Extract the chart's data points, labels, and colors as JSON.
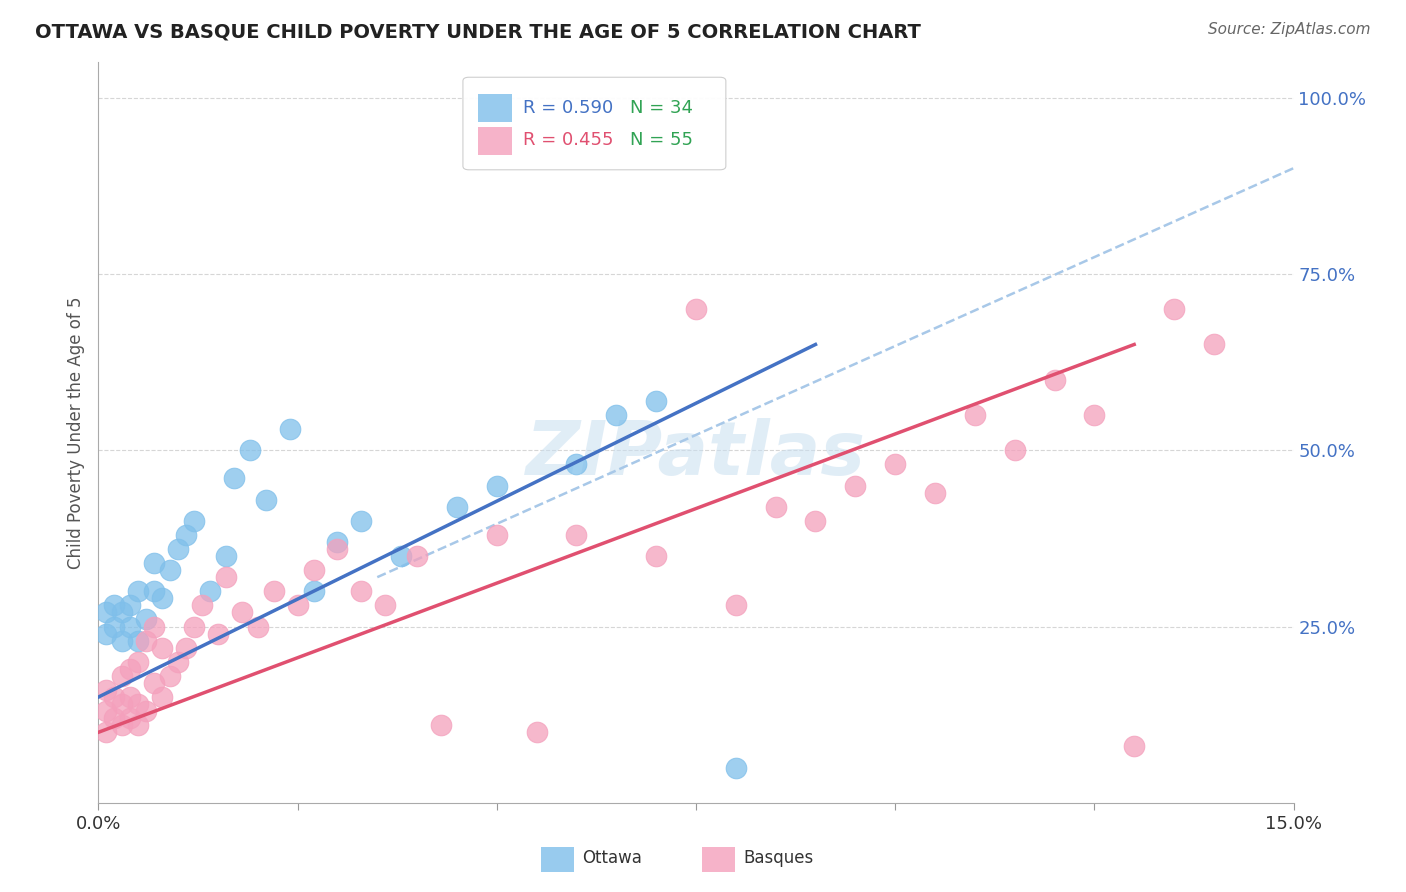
{
  "title": "OTTAWA VS BASQUE CHILD POVERTY UNDER THE AGE OF 5 CORRELATION CHART",
  "source": "Source: ZipAtlas.com",
  "ylabel": "Child Poverty Under the Age of 5",
  "xlim": [
    0.0,
    0.15
  ],
  "ylim": [
    0.0,
    1.05
  ],
  "ytick_vals": [
    0.25,
    0.5,
    0.75,
    1.0
  ],
  "ytick_labels": [
    "25.0%",
    "50.0%",
    "75.0%",
    "100.0%"
  ],
  "ottawa_color": "#7fbfea",
  "basque_color": "#f4a0bc",
  "ottawa_line_color": "#4472c4",
  "basque_line_color": "#e05070",
  "dash_line_color": "#a8c8e8",
  "ottawa_R": 0.59,
  "ottawa_N": 34,
  "basque_R": 0.455,
  "basque_N": 55,
  "watermark": "ZIPatlas",
  "ottawa_x": [
    0.001,
    0.001,
    0.002,
    0.002,
    0.003,
    0.003,
    0.004,
    0.004,
    0.005,
    0.005,
    0.006,
    0.007,
    0.007,
    0.008,
    0.009,
    0.01,
    0.011,
    0.012,
    0.014,
    0.016,
    0.017,
    0.019,
    0.021,
    0.024,
    0.027,
    0.03,
    0.033,
    0.038,
    0.045,
    0.05,
    0.06,
    0.065,
    0.07,
    0.08
  ],
  "ottawa_y": [
    0.24,
    0.27,
    0.25,
    0.28,
    0.23,
    0.27,
    0.25,
    0.28,
    0.23,
    0.3,
    0.26,
    0.3,
    0.34,
    0.29,
    0.33,
    0.36,
    0.38,
    0.4,
    0.3,
    0.35,
    0.46,
    0.5,
    0.43,
    0.53,
    0.3,
    0.37,
    0.4,
    0.35,
    0.42,
    0.45,
    0.48,
    0.55,
    0.57,
    0.05
  ],
  "basque_x": [
    0.001,
    0.001,
    0.001,
    0.002,
    0.002,
    0.003,
    0.003,
    0.003,
    0.004,
    0.004,
    0.004,
    0.005,
    0.005,
    0.005,
    0.006,
    0.006,
    0.007,
    0.007,
    0.008,
    0.008,
    0.009,
    0.01,
    0.011,
    0.012,
    0.013,
    0.015,
    0.016,
    0.018,
    0.02,
    0.022,
    0.025,
    0.027,
    0.03,
    0.033,
    0.036,
    0.04,
    0.043,
    0.05,
    0.055,
    0.06,
    0.07,
    0.075,
    0.08,
    0.085,
    0.09,
    0.095,
    0.1,
    0.105,
    0.11,
    0.115,
    0.12,
    0.125,
    0.13,
    0.135,
    0.14
  ],
  "basque_y": [
    0.1,
    0.13,
    0.16,
    0.12,
    0.15,
    0.11,
    0.14,
    0.18,
    0.12,
    0.15,
    0.19,
    0.11,
    0.14,
    0.2,
    0.13,
    0.23,
    0.17,
    0.25,
    0.15,
    0.22,
    0.18,
    0.2,
    0.22,
    0.25,
    0.28,
    0.24,
    0.32,
    0.27,
    0.25,
    0.3,
    0.28,
    0.33,
    0.36,
    0.3,
    0.28,
    0.35,
    0.11,
    0.38,
    0.1,
    0.38,
    0.35,
    0.7,
    0.28,
    0.42,
    0.4,
    0.45,
    0.48,
    0.44,
    0.55,
    0.5,
    0.6,
    0.55,
    0.08,
    0.7,
    0.65
  ]
}
